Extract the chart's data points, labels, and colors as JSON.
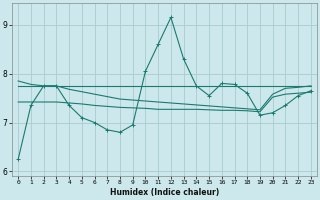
{
  "xlabel": "Humidex (Indice chaleur)",
  "ylabel": "",
  "bg_color": "#cce8ec",
  "grid_color": "#aacccc",
  "line_color": "#1a7a6e",
  "xlim": [
    -0.5,
    23.5
  ],
  "ylim": [
    5.9,
    9.45
  ],
  "yticks": [
    6,
    7,
    8,
    9
  ],
  "xticks": [
    0,
    1,
    2,
    3,
    4,
    5,
    6,
    7,
    8,
    9,
    10,
    11,
    12,
    13,
    14,
    15,
    16,
    17,
    18,
    19,
    20,
    21,
    22,
    23
  ],
  "line1_x": [
    0,
    1,
    2,
    3,
    4,
    5,
    6,
    7,
    8,
    9,
    10,
    11,
    12,
    13,
    14,
    15,
    16,
    17,
    18,
    19,
    20,
    21,
    22,
    23
  ],
  "line1_y": [
    6.25,
    7.35,
    7.75,
    7.75,
    7.35,
    7.1,
    7.0,
    6.85,
    6.8,
    6.95,
    8.05,
    8.6,
    9.15,
    8.3,
    7.75,
    7.55,
    7.8,
    7.78,
    7.6,
    7.15,
    7.2,
    7.35,
    7.55,
    7.65
  ],
  "line2_x": [
    0,
    1,
    2,
    3,
    4,
    5,
    6,
    7,
    8,
    9,
    10,
    11,
    12,
    13,
    14,
    15,
    16,
    17,
    18,
    19,
    20,
    21,
    22,
    23
  ],
  "line2_y": [
    7.85,
    7.78,
    7.75,
    7.75,
    7.68,
    7.63,
    7.58,
    7.53,
    7.48,
    7.46,
    7.44,
    7.42,
    7.4,
    7.38,
    7.36,
    7.34,
    7.32,
    7.3,
    7.28,
    7.26,
    7.58,
    7.7,
    7.72,
    7.75
  ],
  "line3_x": [
    0,
    1,
    2,
    3,
    4,
    5,
    6,
    7,
    8,
    9,
    10,
    11,
    12,
    13,
    14,
    15,
    16,
    17,
    18,
    19,
    20,
    21,
    22,
    23
  ],
  "line3_y": [
    7.42,
    7.42,
    7.42,
    7.42,
    7.4,
    7.38,
    7.35,
    7.33,
    7.31,
    7.3,
    7.29,
    7.27,
    7.27,
    7.27,
    7.27,
    7.26,
    7.25,
    7.25,
    7.24,
    7.22,
    7.52,
    7.58,
    7.6,
    7.62
  ],
  "line4_x": [
    0,
    23
  ],
  "line4_y": [
    7.75,
    7.75
  ]
}
